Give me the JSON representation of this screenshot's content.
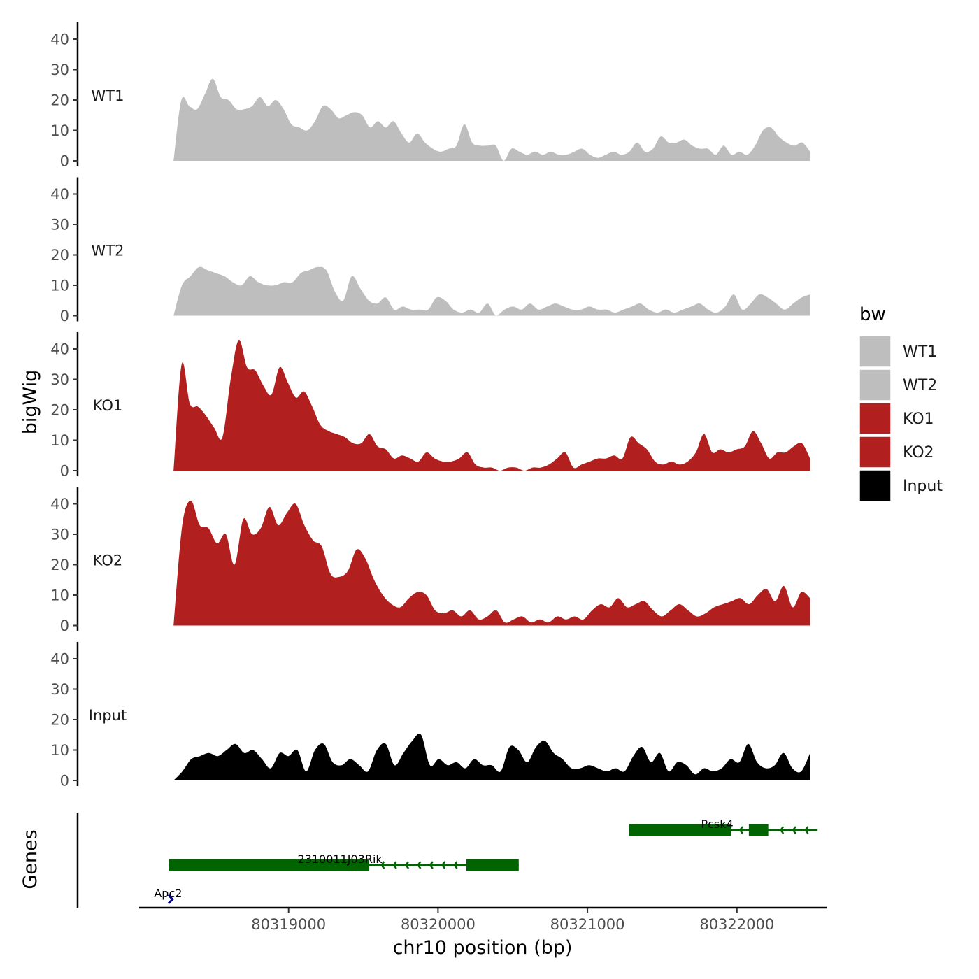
{
  "chart_data": {
    "type": "area",
    "chromosome": "chr10",
    "x_range": [
      80318000,
      80322600
    ],
    "xlabel": "chr10 position (bp)",
    "ylabel": "bigWig",
    "genes_label": "Genes",
    "xticks": [
      80319000,
      80320000,
      80321000,
      80322000
    ],
    "x_tick_labels": [
      "80319000",
      "80320000",
      "80321000",
      "80322000"
    ],
    "ylim": [
      0,
      45
    ],
    "yticks": [
      0,
      10,
      20,
      30,
      40
    ],
    "y_tick_labels": [
      "0",
      "10",
      "20",
      "30",
      "40"
    ],
    "track_start": 80318230,
    "track_end": 80322490,
    "series": [
      {
        "name": "WT1",
        "color": "#bebebe",
        "values": [
          0,
          20,
          18,
          17,
          22,
          27,
          21,
          20,
          17,
          17,
          18,
          21,
          18,
          20,
          17,
          12,
          11,
          10,
          13,
          18,
          17,
          14,
          15,
          16,
          15,
          11,
          13,
          11,
          13,
          9,
          6,
          9,
          6,
          4,
          3,
          4,
          5,
          12,
          6,
          5,
          5,
          5,
          0,
          4,
          3,
          2,
          3,
          2,
          3,
          2,
          2,
          3,
          4,
          2,
          1,
          2,
          3,
          2,
          3,
          6,
          3,
          4,
          8,
          6,
          6,
          7,
          5,
          4,
          4,
          2,
          5,
          2,
          3,
          2,
          5,
          10,
          11,
          8,
          6,
          5,
          6,
          3
        ]
      },
      {
        "name": "WT2",
        "color": "#bebebe",
        "values": [
          0,
          10,
          13,
          16,
          15,
          14,
          13,
          11,
          10,
          13,
          11,
          10,
          10,
          11,
          11,
          14,
          15,
          16,
          15,
          8,
          5,
          13,
          9,
          5,
          4,
          6,
          2,
          3,
          2,
          2,
          2,
          6,
          5,
          2,
          1,
          2,
          1,
          4,
          0,
          2,
          3,
          2,
          4,
          2,
          3,
          4,
          3,
          2,
          2,
          3,
          2,
          2,
          1,
          2,
          3,
          4,
          2,
          1,
          2,
          1,
          2,
          3,
          4,
          2,
          1,
          3,
          7,
          2,
          4,
          7,
          6,
          4,
          2,
          4,
          6,
          7
        ]
      },
      {
        "name": "KO1",
        "color": "#b21f1f",
        "values": [
          0,
          35,
          22,
          21,
          18,
          14,
          11,
          30,
          43,
          34,
          33,
          28,
          25,
          34,
          29,
          24,
          26,
          21,
          15,
          13,
          12,
          11,
          9,
          9,
          12,
          8,
          7,
          4,
          5,
          4,
          3,
          6,
          4,
          3,
          3,
          4,
          6,
          2,
          1,
          1,
          0,
          1,
          1,
          0,
          1,
          1,
          2,
          4,
          6,
          1,
          2,
          3,
          4,
          4,
          5,
          4,
          11,
          9,
          7,
          3,
          2,
          3,
          2,
          3,
          6,
          12,
          6,
          7,
          6,
          7,
          8,
          13,
          9,
          4,
          6,
          6,
          8,
          9,
          4
        ]
      },
      {
        "name": "KO2",
        "color": "#b21f1f",
        "values": [
          0,
          33,
          41,
          33,
          32,
          27,
          30,
          20,
          35,
          30,
          32,
          39,
          33,
          37,
          40,
          33,
          28,
          26,
          17,
          16,
          18,
          25,
          22,
          15,
          10,
          7,
          6,
          9,
          11,
          10,
          5,
          4,
          5,
          3,
          5,
          2,
          3,
          5,
          1,
          2,
          3,
          1,
          2,
          1,
          3,
          2,
          3,
          2,
          5,
          7,
          6,
          9,
          6,
          7,
          8,
          5,
          3,
          5,
          7,
          5,
          3,
          4,
          6,
          7,
          8,
          9,
          7,
          10,
          12,
          8,
          13,
          6,
          11,
          9
        ]
      },
      {
        "name": "Input",
        "color": "#000000",
        "values": [
          0,
          3,
          7,
          8,
          9,
          8,
          10,
          12,
          9,
          10,
          7,
          4,
          9,
          8,
          10,
          3,
          10,
          12,
          6,
          5,
          7,
          5,
          3,
          10,
          12,
          5,
          9,
          13,
          15,
          5,
          7,
          5,
          6,
          4,
          7,
          5,
          5,
          3,
          11,
          10,
          6,
          11,
          13,
          9,
          7,
          4,
          4,
          5,
          4,
          3,
          4,
          3,
          8,
          11,
          6,
          9,
          3,
          6,
          5,
          2,
          4,
          3,
          4,
          7,
          6,
          12,
          6,
          4,
          5,
          9,
          4,
          3,
          9
        ]
      }
    ],
    "genes": [
      {
        "name": "Pcsk4",
        "strand": "-",
        "color": "#006400",
        "start": 80321280,
        "end": 80322540,
        "exons": [
          [
            80321280,
            80321960
          ],
          [
            80322080,
            80322210
          ]
        ],
        "label_x": 80321760
      },
      {
        "name": "2310011J03Rik",
        "strand": "-",
        "color": "#006400",
        "start": 80318200,
        "end": 80320540,
        "exons": [
          [
            80318200,
            80319540
          ],
          [
            80320190,
            80320540
          ]
        ],
        "label_x": 80319060
      },
      {
        "name": "Apc2",
        "strand": "+",
        "color": "#00008b",
        "start": 80318200,
        "end": 80318270,
        "exons": [],
        "label_x": 80318100
      }
    ],
    "legend": {
      "title": "bw",
      "position": "right",
      "entries": [
        {
          "label": "WT1",
          "color": "#bebebe"
        },
        {
          "label": "WT2",
          "color": "#bebebe"
        },
        {
          "label": "KO1",
          "color": "#b21f1f"
        },
        {
          "label": "KO2",
          "color": "#b21f1f"
        },
        {
          "label": "Input",
          "color": "#000000"
        }
      ]
    }
  }
}
